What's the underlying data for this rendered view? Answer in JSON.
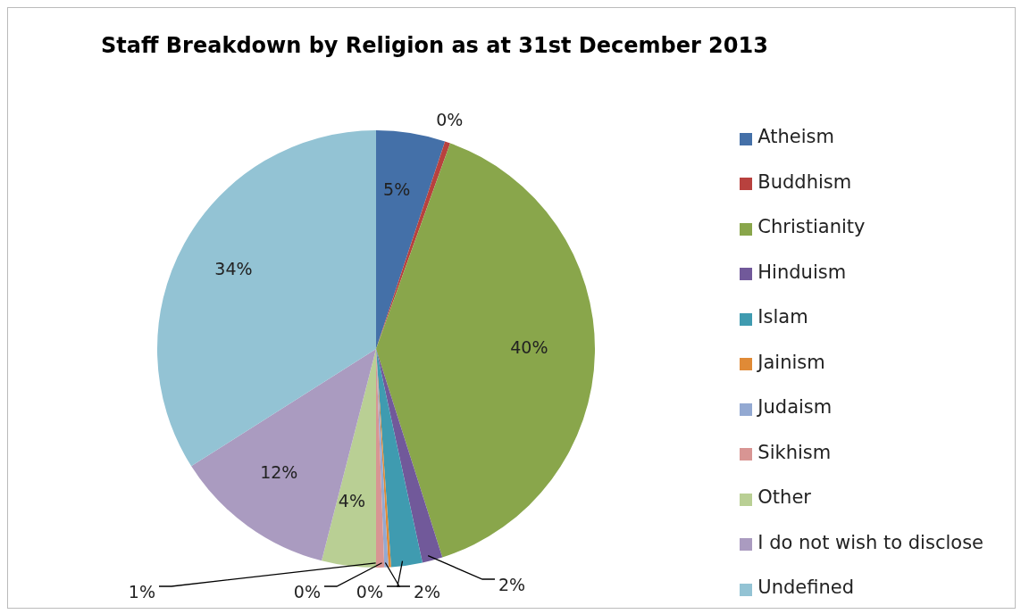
{
  "chart_data": {
    "type": "pie",
    "title": "Staff Breakdown by Religion as at 31st December 2013",
    "categories": [
      "Atheism",
      "Buddhism",
      "Christianity",
      "Hinduism",
      "Islam",
      "Jainism",
      "Judaism",
      "Sikhism",
      "Other",
      "I do not wish to disclose",
      "Undefined"
    ],
    "values": [
      5.1,
      0.4,
      39.6,
      1.5,
      2.3,
      0.2,
      0.3,
      0.6,
      4.0,
      12.0,
      34.0
    ],
    "value_labels": [
      "5%",
      "0%",
      "40%",
      "2%",
      "2%",
      "0%",
      "0%",
      "1%",
      "4%",
      "12%",
      "34%"
    ],
    "colors": [
      "#4470a8",
      "#b8413e",
      "#89a64b",
      "#71599a",
      "#3f9bb0",
      "#e08a36",
      "#93a9d2",
      "#d89593",
      "#b9cf94",
      "#aa9bc0",
      "#93c3d4"
    ],
    "legend": "right"
  }
}
